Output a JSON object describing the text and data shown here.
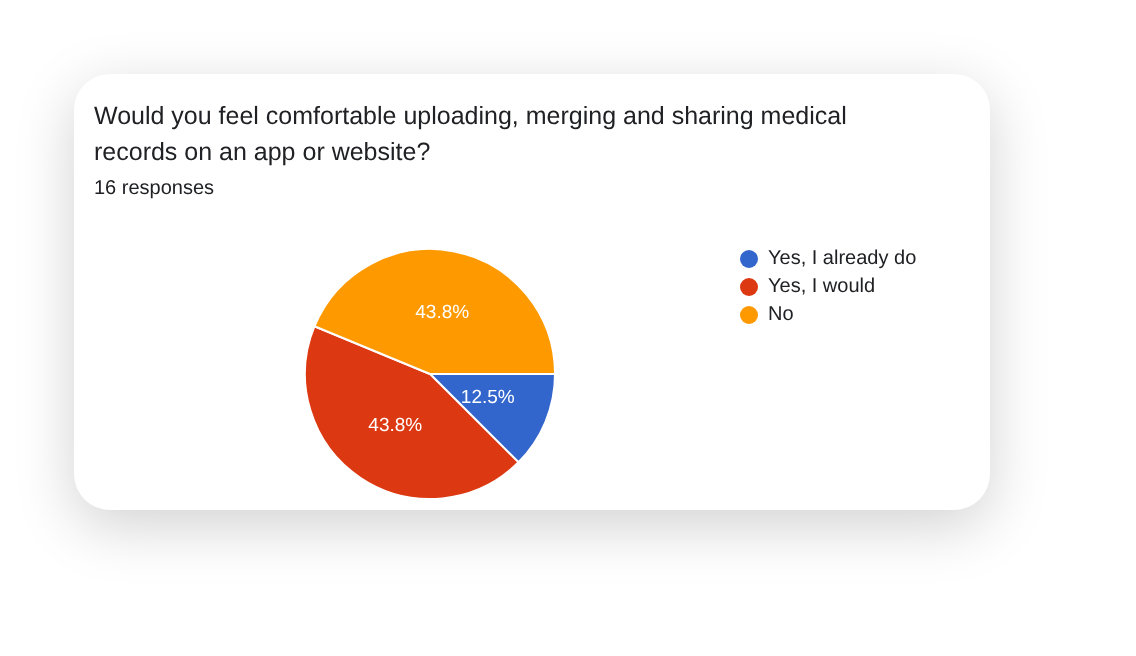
{
  "chart_data": {
    "type": "pie",
    "title": "Would you feel comfortable uploading, merging and sharing medical records on an app or website?",
    "subtitle": "16 responses",
    "categories": [
      "Yes, I already do",
      "Yes, I would",
      "No"
    ],
    "values": [
      12.5,
      43.8,
      43.8
    ],
    "colors": [
      "#3366cc",
      "#dc3912",
      "#ff9900"
    ],
    "value_labels": [
      "12.5%",
      "43.8%",
      "43.8%"
    ],
    "legend": "right"
  }
}
